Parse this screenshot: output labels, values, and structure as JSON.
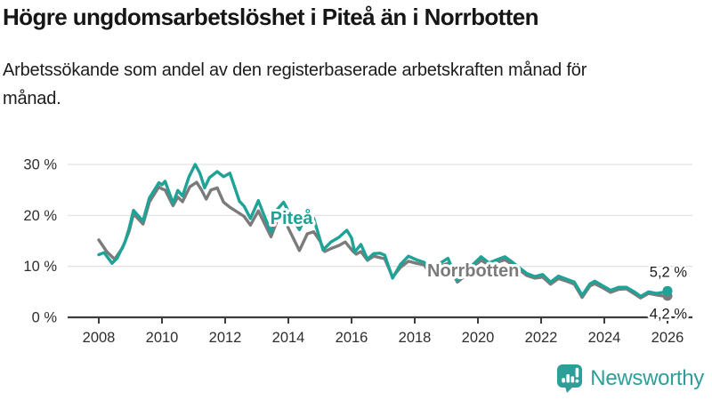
{
  "header": {
    "title": "Högre ungdomsarbetslöshet i Piteå än i Norrbotten",
    "subtitle": "Arbetssökande som andel av den registerbaserade arbetskraften månad för månad."
  },
  "branding": {
    "name": "Newsworthy",
    "icon": "newsworthy-chart-bubble-icon",
    "color": "#2f9e99"
  },
  "colors": {
    "pitea": "#1ea396",
    "norrbotten": "#7b7b7b",
    "axis_text": "#2e2e2e",
    "axis_line": "#3c3c3c",
    "gridline": "#e2e2e2",
    "value_label": "#1a1a1a",
    "halo": "#ffffff"
  },
  "chart_data": {
    "type": "line",
    "title": "Högre ungdomsarbetslöshet i Piteå än i Norrbotten",
    "subtitle": "Arbetssökande som andel av den registerbaserade arbetskraften månad för månad.",
    "unit": "%",
    "x_axis": {
      "ticks": [
        2008,
        2010,
        2012,
        2014,
        2016,
        2018,
        2020,
        2022,
        2024,
        2026
      ],
      "min": 2007.0,
      "max": 2026.8
    },
    "y_axis": {
      "ticks": [
        0,
        10,
        20,
        30
      ],
      "suffix": " %",
      "min": 0,
      "max": 31,
      "gridlines": true
    },
    "legend": "inline-series-labels",
    "series": [
      {
        "name": "Piteå",
        "color": "#1ea396",
        "end_label": "5,2 %",
        "end_value": 5.2,
        "label_pos": {
          "year": 2014.1,
          "value": 18.3
        },
        "points": [
          [
            2008.0,
            12.3
          ],
          [
            2008.17,
            12.7
          ],
          [
            2008.42,
            10.6
          ],
          [
            2008.58,
            11.6
          ],
          [
            2008.83,
            14.8
          ],
          [
            2008.96,
            17.5
          ],
          [
            2009.1,
            21.0
          ],
          [
            2009.25,
            19.9
          ],
          [
            2009.4,
            18.9
          ],
          [
            2009.6,
            23.4
          ],
          [
            2009.9,
            26.4
          ],
          [
            2010.0,
            26.0
          ],
          [
            2010.1,
            26.7
          ],
          [
            2010.35,
            22.4
          ],
          [
            2010.5,
            24.9
          ],
          [
            2010.65,
            23.8
          ],
          [
            2010.85,
            27.5
          ],
          [
            2011.05,
            30.0
          ],
          [
            2011.2,
            28.3
          ],
          [
            2011.35,
            25.4
          ],
          [
            2011.5,
            27.4
          ],
          [
            2011.75,
            28.6
          ],
          [
            2011.95,
            27.6
          ],
          [
            2012.15,
            28.3
          ],
          [
            2012.45,
            22.8
          ],
          [
            2012.6,
            21.8
          ],
          [
            2012.8,
            19.4
          ],
          [
            2013.05,
            22.9
          ],
          [
            2013.2,
            20.5
          ],
          [
            2013.45,
            16.7
          ],
          [
            2013.65,
            21.2
          ],
          [
            2013.85,
            22.6
          ],
          [
            2014.05,
            20.2
          ],
          [
            2014.35,
            17.2
          ],
          [
            2014.6,
            20.5
          ],
          [
            2014.8,
            19.5
          ],
          [
            2015.1,
            13.2
          ],
          [
            2015.35,
            14.8
          ],
          [
            2015.6,
            15.7
          ],
          [
            2015.85,
            17.1
          ],
          [
            2016.0,
            15.6
          ],
          [
            2016.1,
            12.8
          ],
          [
            2016.3,
            14.3
          ],
          [
            2016.5,
            11.4
          ],
          [
            2016.7,
            12.5
          ],
          [
            2016.9,
            12.6
          ],
          [
            2017.05,
            12.2
          ],
          [
            2017.3,
            7.7
          ],
          [
            2017.55,
            10.4
          ],
          [
            2017.8,
            12.0
          ],
          [
            2018.05,
            11.3
          ],
          [
            2018.3,
            10.8
          ],
          [
            2018.5,
            8.8
          ],
          [
            2018.75,
            10.4
          ],
          [
            2019.05,
            11.6
          ],
          [
            2019.35,
            7.2
          ],
          [
            2019.6,
            8.8
          ],
          [
            2019.85,
            10.4
          ],
          [
            2020.1,
            11.9
          ],
          [
            2020.35,
            10.7
          ],
          [
            2020.6,
            11.3
          ],
          [
            2020.85,
            11.9
          ],
          [
            2021.05,
            11.0
          ],
          [
            2021.3,
            9.8
          ],
          [
            2021.55,
            8.6
          ],
          [
            2021.8,
            8.0
          ],
          [
            2022.05,
            8.4
          ],
          [
            2022.3,
            6.9
          ],
          [
            2022.55,
            8.1
          ],
          [
            2022.8,
            7.5
          ],
          [
            2023.05,
            6.9
          ],
          [
            2023.3,
            4.3
          ],
          [
            2023.55,
            6.6
          ],
          [
            2023.7,
            7.1
          ],
          [
            2023.95,
            6.2
          ],
          [
            2024.2,
            5.3
          ],
          [
            2024.45,
            5.9
          ],
          [
            2024.7,
            5.9
          ],
          [
            2024.95,
            5.0
          ],
          [
            2025.15,
            4.1
          ],
          [
            2025.4,
            5.0
          ],
          [
            2025.65,
            4.7
          ],
          [
            2025.85,
            4.9
          ],
          [
            2026.0,
            5.2
          ]
        ]
      },
      {
        "name": "Norrbotten",
        "color": "#7b7b7b",
        "end_label": "4,2 %",
        "end_value": 4.2,
        "label_pos": {
          "year": 2019.85,
          "value": 8.0
        },
        "points": [
          [
            2008.0,
            15.2
          ],
          [
            2008.25,
            12.9
          ],
          [
            2008.5,
            11.4
          ],
          [
            2008.75,
            13.6
          ],
          [
            2008.96,
            16.9
          ],
          [
            2009.1,
            20.3
          ],
          [
            2009.25,
            19.3
          ],
          [
            2009.4,
            18.3
          ],
          [
            2009.6,
            22.6
          ],
          [
            2009.9,
            25.6
          ],
          [
            2010.0,
            25.2
          ],
          [
            2010.1,
            25.0
          ],
          [
            2010.35,
            21.9
          ],
          [
            2010.5,
            23.6
          ],
          [
            2010.65,
            22.7
          ],
          [
            2010.88,
            25.6
          ],
          [
            2011.1,
            26.5
          ],
          [
            2011.25,
            25.0
          ],
          [
            2011.4,
            23.2
          ],
          [
            2011.55,
            25.0
          ],
          [
            2011.75,
            25.4
          ],
          [
            2011.95,
            22.6
          ],
          [
            2012.15,
            21.6
          ],
          [
            2012.45,
            20.4
          ],
          [
            2012.6,
            19.8
          ],
          [
            2012.8,
            18.1
          ],
          [
            2013.05,
            20.9
          ],
          [
            2013.2,
            19.0
          ],
          [
            2013.45,
            15.8
          ],
          [
            2013.65,
            19.1
          ],
          [
            2013.85,
            19.7
          ],
          [
            2014.0,
            17.5
          ],
          [
            2014.35,
            13.1
          ],
          [
            2014.6,
            16.4
          ],
          [
            2014.8,
            16.8
          ],
          [
            2015.0,
            15.0
          ],
          [
            2015.15,
            12.9
          ],
          [
            2015.35,
            13.5
          ],
          [
            2015.6,
            14.1
          ],
          [
            2015.8,
            14.8
          ],
          [
            2016.05,
            12.9
          ],
          [
            2016.15,
            12.4
          ],
          [
            2016.3,
            12.9
          ],
          [
            2016.5,
            11.2
          ],
          [
            2016.7,
            12.0
          ],
          [
            2016.9,
            11.7
          ],
          [
            2017.05,
            11.5
          ],
          [
            2017.3,
            7.9
          ],
          [
            2017.55,
            9.8
          ],
          [
            2017.8,
            11.0
          ],
          [
            2018.05,
            10.6
          ],
          [
            2018.3,
            10.3
          ],
          [
            2018.5,
            8.5
          ],
          [
            2018.75,
            9.9
          ],
          [
            2019.05,
            10.6
          ],
          [
            2019.35,
            6.9
          ],
          [
            2019.6,
            8.2
          ],
          [
            2019.85,
            9.8
          ],
          [
            2020.1,
            11.2
          ],
          [
            2020.35,
            10.3
          ],
          [
            2020.6,
            10.8
          ],
          [
            2020.85,
            11.3
          ],
          [
            2021.05,
            10.5
          ],
          [
            2021.3,
            9.4
          ],
          [
            2021.55,
            8.2
          ],
          [
            2021.8,
            7.7
          ],
          [
            2022.05,
            7.9
          ],
          [
            2022.3,
            6.5
          ],
          [
            2022.55,
            7.6
          ],
          [
            2022.8,
            7.1
          ],
          [
            2023.05,
            6.5
          ],
          [
            2023.3,
            3.9
          ],
          [
            2023.55,
            6.2
          ],
          [
            2023.7,
            6.6
          ],
          [
            2023.95,
            5.8
          ],
          [
            2024.2,
            4.9
          ],
          [
            2024.45,
            5.5
          ],
          [
            2024.7,
            5.6
          ],
          [
            2024.95,
            4.6
          ],
          [
            2025.15,
            3.8
          ],
          [
            2025.4,
            4.7
          ],
          [
            2025.65,
            4.4
          ],
          [
            2025.85,
            4.2
          ],
          [
            2026.0,
            4.2
          ]
        ]
      }
    ]
  }
}
